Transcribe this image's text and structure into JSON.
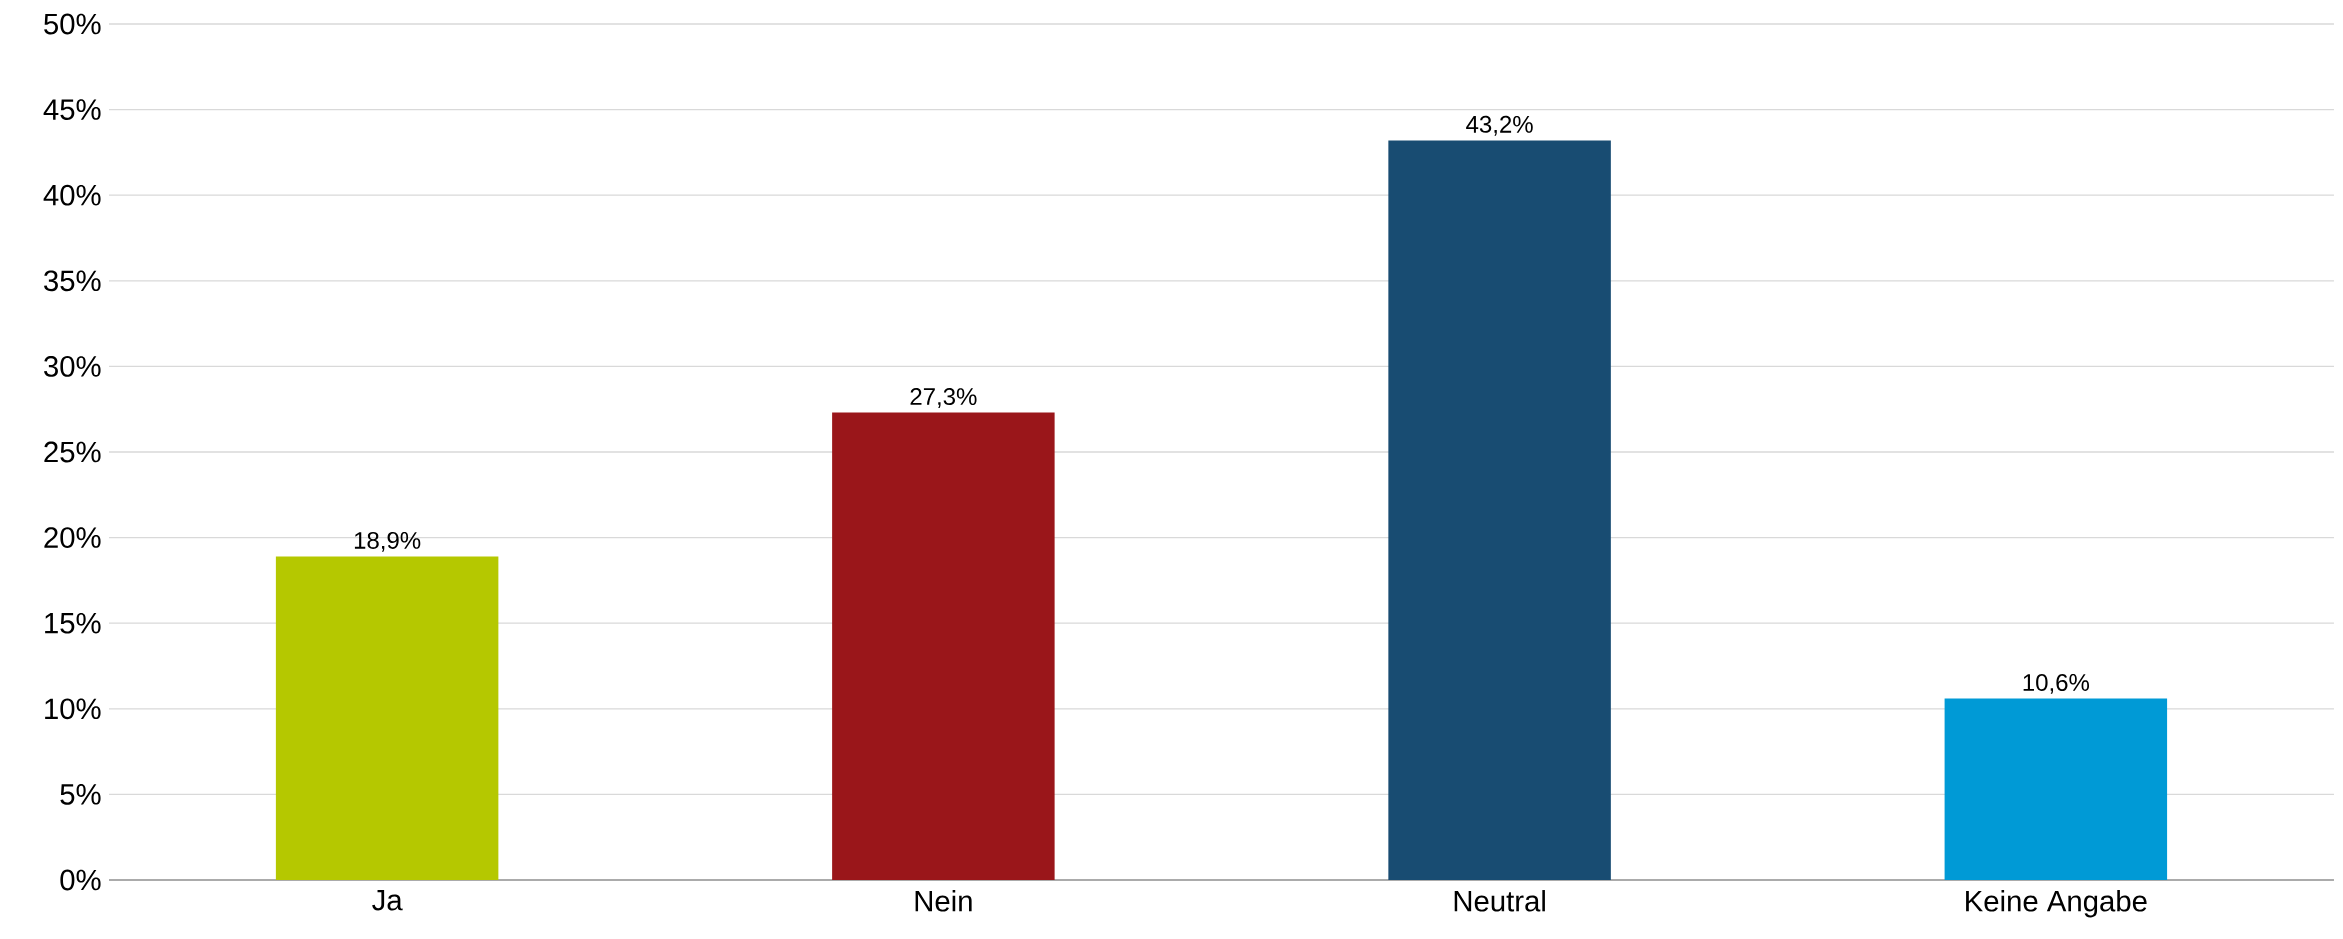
{
  "chart_data": {
    "type": "bar",
    "categories": [
      "Ja",
      "Nein",
      "Neutral",
      "Keine Angabe"
    ],
    "values": [
      18.9,
      27.3,
      43.2,
      10.6
    ],
    "colors": [
      "#b5c800",
      "#9a161a",
      "#184c72",
      "#009ad6"
    ],
    "value_labels": [
      "18,9%",
      "27,3%",
      "43,2%",
      "10,6%"
    ],
    "ylim": [
      0,
      50
    ],
    "yticks": [
      {
        "value": 0,
        "label": "0%"
      },
      {
        "value": 5,
        "label": "5%"
      },
      {
        "value": 10,
        "label": "10%"
      },
      {
        "value": 15,
        "label": "15%"
      },
      {
        "value": 20,
        "label": "20%"
      },
      {
        "value": 25,
        "label": "25%"
      },
      {
        "value": 30,
        "label": "30%"
      },
      {
        "value": 35,
        "label": "35%"
      },
      {
        "value": 40,
        "label": "40%"
      },
      {
        "value": 45,
        "label": "45%"
      },
      {
        "value": 50,
        "label": "50%"
      }
    ],
    "grid": "y"
  }
}
